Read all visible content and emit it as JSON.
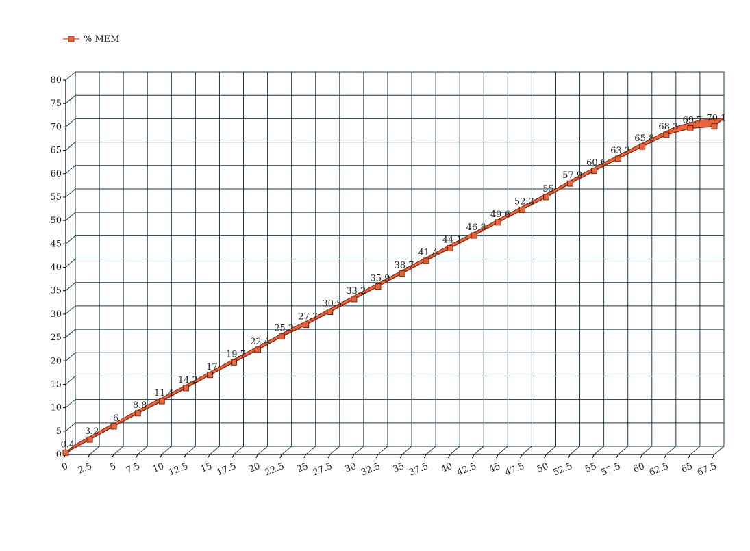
{
  "chart_data": {
    "type": "line",
    "title": "",
    "xlabel": "",
    "ylabel": "",
    "xlim": [
      0,
      67.5
    ],
    "ylim": [
      0,
      80
    ],
    "x_ticks": [
      "0",
      "2.5",
      "5",
      "7.5",
      "10",
      "12.5",
      "15",
      "17.5",
      "20",
      "22.5",
      "25",
      "27.5",
      "30",
      "32.5",
      "35",
      "37.5",
      "40",
      "42.5",
      "45",
      "47.5",
      "50",
      "52.5",
      "55",
      "57.5",
      "60",
      "62.5",
      "65",
      "67.5"
    ],
    "y_ticks": [
      "0",
      "5",
      "10",
      "15",
      "20",
      "25",
      "30",
      "35",
      "40",
      "45",
      "50",
      "55",
      "60",
      "65",
      "70",
      "75",
      "80"
    ],
    "grid": true,
    "legend": "top-left",
    "series": [
      {
        "name": "% MEM",
        "color": "#e8643c",
        "x": [
          0,
          2.5,
          5,
          7.5,
          10,
          12.5,
          15,
          17.5,
          20,
          22.5,
          25,
          27.5,
          30,
          32.5,
          35,
          37.5,
          40,
          42.5,
          45,
          47.5,
          50,
          52.5,
          55,
          57.5,
          60,
          62.5,
          65,
          67.5
        ],
        "values": [
          0.4,
          3.2,
          6,
          8.8,
          11.4,
          14.2,
          17,
          19.7,
          22.4,
          25.2,
          27.7,
          30.5,
          33.2,
          35.9,
          38.7,
          41.4,
          44.1,
          46.8,
          49.6,
          52.3,
          55,
          57.9,
          60.6,
          63.2,
          65.8,
          68.3,
          69.7,
          70.1
        ],
        "labels": [
          "0.4",
          "3.2",
          "6",
          "8.8",
          "11.4",
          "14.2",
          "17",
          "19.7",
          "22.4",
          "25.2",
          "27.7",
          "30.5",
          "33.2",
          "35.9",
          "38.7",
          "41.4",
          "44.1",
          "46.8",
          "49.6",
          "52.3",
          "55",
          "57.9",
          "60.6",
          "63.2",
          "65.8",
          "68.3",
          "69.7",
          "70.1"
        ]
      }
    ]
  }
}
